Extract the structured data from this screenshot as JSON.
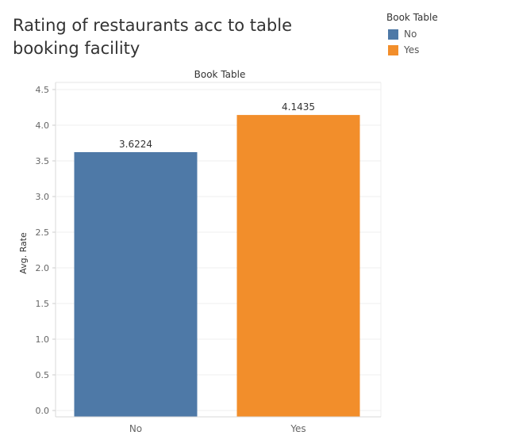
{
  "title": "Rating of restaurants acc to table booking facility",
  "legend": {
    "title": "Book Table",
    "items": [
      {
        "label": "No",
        "color": "#4e79a7"
      },
      {
        "label": "Yes",
        "color": "#f28e2b"
      }
    ],
    "placement": "top-right"
  },
  "chart_data": {
    "type": "bar",
    "title": "Rating of restaurants acc to table booking facility",
    "column_header": "Book Table",
    "xlabel": "",
    "ylabel": "Avg. Rate",
    "categories": [
      "No",
      "Yes"
    ],
    "values": [
      3.6224,
      4.1435
    ],
    "data_labels": [
      "3.6224",
      "4.1435"
    ],
    "colors": [
      "#4e79a7",
      "#f28e2b"
    ],
    "ylim": [
      0,
      4.5
    ],
    "yticks": [
      0.0,
      0.5,
      1.0,
      1.5,
      2.0,
      2.5,
      3.0,
      3.5,
      4.0,
      4.5
    ],
    "ytick_labels": [
      "0.0",
      "0.5",
      "1.0",
      "1.5",
      "2.0",
      "2.5",
      "3.0",
      "3.5",
      "4.0",
      "4.5"
    ],
    "grid": true,
    "legend_position": "top-right"
  }
}
